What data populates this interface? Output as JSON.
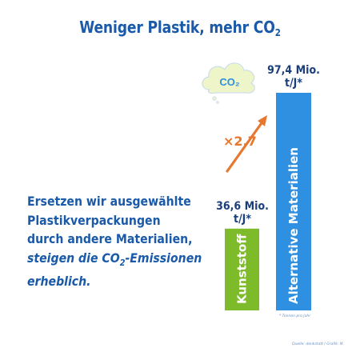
{
  "title": {
    "text": "Weniger Plastik, mehr CO",
    "sub": "2"
  },
  "body_text": {
    "line1": "Ersetzen wir ausgewählte",
    "line2": "Plastikverpackungen",
    "line3": "durch andere Materialien,",
    "line4_a": "steigen die CO",
    "line4_sub": "2",
    "line4_b": "-Emissionen",
    "line5": "erheblich."
  },
  "factor_label": "×2,7",
  "cloud_label": "CO₂",
  "footnote": "* Tonnen pro Jahr",
  "source": "Quelle: denkstatt / Grafik: IK",
  "colors": {
    "title": "#1a5aa8",
    "kunststoff": "#7dbb2a",
    "alternative": "#2f8fe0",
    "arrow": "#e8772e",
    "cloud": "#eef6c9",
    "cloud_text": "#2f8fe0"
  },
  "chart_data": {
    "type": "bar",
    "categories": [
      "Kunststoff",
      "Alternative Materialien"
    ],
    "values": [
      36.6,
      97.4
    ],
    "value_labels": [
      "36,6 Mio. t/J*",
      "97,4 Mio. t/J*"
    ],
    "value_label_lines": [
      [
        "36,6 Mio.",
        "t/J*"
      ],
      [
        "97,4 Mio.",
        "t/J*"
      ]
    ],
    "ylim": [
      0,
      97.4
    ],
    "grid": false
  }
}
